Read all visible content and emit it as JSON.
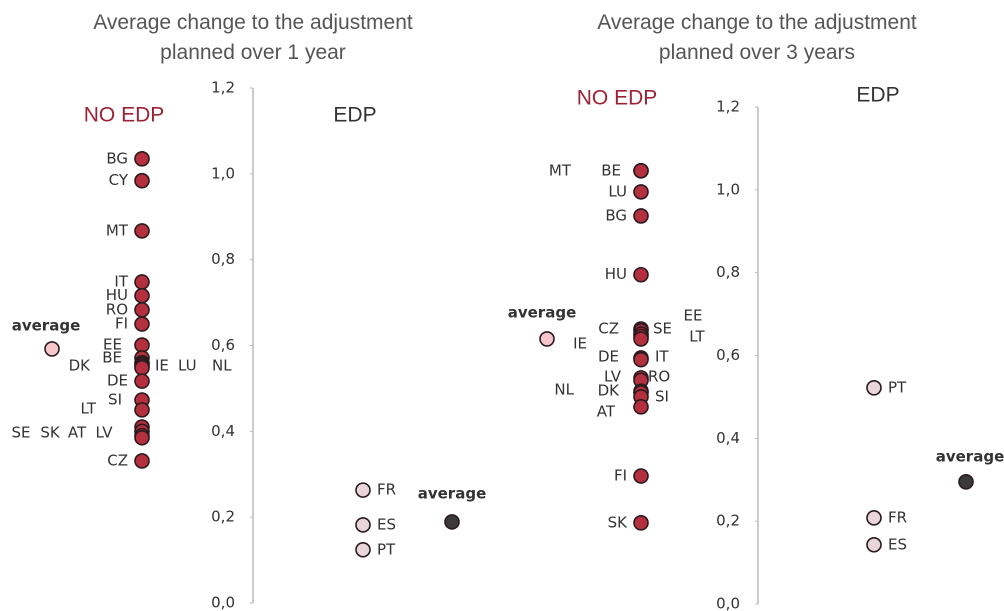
{
  "chart_data": [
    {
      "type": "dot",
      "title": "Average change to the adjustment planned over 1 year",
      "ylim": [
        0,
        1.2
      ],
      "yticks": [
        {
          "value": 0,
          "label": "0,0"
        },
        {
          "value": 0.2,
          "label": "0,2"
        },
        {
          "value": 0.4,
          "label": "0,4"
        },
        {
          "value": 0.6,
          "label": "0,6"
        },
        {
          "value": 0.8,
          "label": "0,8"
        },
        {
          "value": 1.0,
          "label": "1,0"
        },
        {
          "value": 1.2,
          "label": "1,2"
        }
      ],
      "series": [
        {
          "name": "NO EDP",
          "color": "#b5303f",
          "labels": [
            "BG",
            "CY",
            "MT",
            "IT",
            "HU",
            "RO",
            "FI",
            "EE",
            "BE",
            "DK",
            "IE",
            "LU",
            "NL",
            "DE",
            "SI",
            "LT",
            "SE",
            "SK",
            "AT",
            "LV",
            "CZ"
          ],
          "values": [
            1.035,
            0.984,
            0.867,
            0.748,
            0.716,
            0.683,
            0.65,
            0.601,
            0.571,
            0.56,
            0.556,
            0.552,
            0.548,
            0.517,
            0.473,
            0.45,
            0.41,
            0.4,
            0.39,
            0.385,
            0.331
          ],
          "average": {
            "label": "average",
            "value": 0.592,
            "color": "#f6c6ca"
          }
        },
        {
          "name": "EDP",
          "color": "#e8d6db",
          "labels": [
            "FR",
            "ES",
            "PT"
          ],
          "values": [
            0.263,
            0.182,
            0.124
          ],
          "average": {
            "label": "average",
            "value": 0.189,
            "color": "#3a3a3a"
          }
        }
      ]
    },
    {
      "type": "dot",
      "title": "Average change to the adjustment planned over 3 years",
      "ylim": [
        0,
        1.2
      ],
      "yticks": [
        {
          "value": 0,
          "label": "0,0"
        },
        {
          "value": 0.2,
          "label": "0,2"
        },
        {
          "value": 0.4,
          "label": "0,4"
        },
        {
          "value": 0.6,
          "label": "0,6"
        },
        {
          "value": 0.8,
          "label": "0,8"
        },
        {
          "value": 1.0,
          "label": "1,0"
        },
        {
          "value": 1.2,
          "label": "1,2"
        }
      ],
      "series": [
        {
          "name": "NO EDP",
          "color": "#b5303f",
          "labels": [
            "MT",
            "BE",
            "LU",
            "BG",
            "HU",
            "CZ",
            "SE",
            "EE",
            "LT",
            "IE",
            "DE",
            "IT",
            "LV",
            "RO",
            "DK",
            "NL",
            "SI",
            "AT",
            "FI",
            "SK"
          ],
          "values": [
            1.046,
            1.046,
            0.995,
            0.937,
            0.795,
            0.664,
            0.66,
            0.652,
            0.646,
            0.64,
            0.594,
            0.59,
            0.546,
            0.54,
            0.514,
            0.51,
            0.5,
            0.476,
            0.309,
            0.196
          ],
          "average": {
            "label": "average",
            "value": 0.64,
            "color": "#f6c6ca"
          }
        },
        {
          "name": "EDP",
          "color": "#e8d6db",
          "labels": [
            "PT",
            "FR",
            "ES"
          ],
          "values": [
            0.522,
            0.208,
            0.143
          ],
          "average": {
            "label": "average",
            "value": 0.295,
            "color": "#3a3a3a"
          }
        }
      ]
    }
  ]
}
